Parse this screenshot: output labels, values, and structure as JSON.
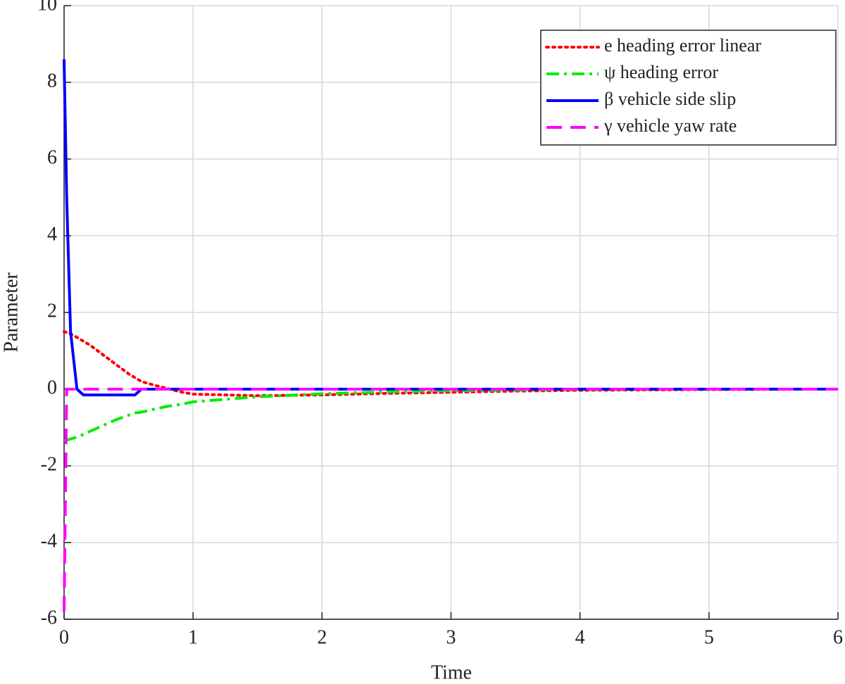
{
  "chart_data": {
    "type": "line",
    "xlabel": "Time",
    "ylabel": "Parameter",
    "x": [
      0,
      0.02,
      0.05,
      0.1,
      0.15,
      0.2,
      0.3,
      0.4,
      0.5,
      0.55,
      0.6,
      0.7,
      0.8,
      0.9,
      1,
      1.5,
      2,
      2.5,
      3,
      3.5,
      4,
      5,
      6
    ],
    "series": [
      {
        "name": "e heading error linear",
        "color": "#ff0000",
        "style": "dotted",
        "values": [
          1.5,
          1.48,
          1.44,
          1.35,
          1.25,
          1.15,
          0.9,
          0.65,
          0.4,
          0.3,
          0.2,
          0.1,
          0.02,
          -0.07,
          -0.13,
          -0.17,
          -0.15,
          -0.11,
          -0.08,
          -0.05,
          -0.03,
          -0.01,
          0
        ]
      },
      {
        "name": "ψ heading error",
        "color": "#00ee00",
        "style": "dashdot",
        "values": [
          -1.35,
          -1.33,
          -1.3,
          -1.25,
          -1.18,
          -1.1,
          -0.95,
          -0.8,
          -0.68,
          -0.62,
          -0.6,
          -0.52,
          -0.45,
          -0.4,
          -0.33,
          -0.2,
          -0.12,
          -0.07,
          -0.04,
          -0.02,
          -0.01,
          0,
          0
        ]
      },
      {
        "name": "β vehicle side slip",
        "color": "#0000ff",
        "style": "solid",
        "values": [
          8.6,
          5,
          1.5,
          0,
          -0.15,
          -0.15,
          -0.15,
          -0.15,
          -0.15,
          -0.15,
          0,
          0,
          0,
          0,
          0,
          0,
          0,
          0,
          0,
          0,
          0,
          0,
          0
        ]
      },
      {
        "name": "γ vehicle yaw rate",
        "color": "#ff00ff",
        "style": "dashed",
        "values": [
          -5.8,
          0,
          0,
          0,
          0,
          0,
          0,
          0,
          0,
          0,
          0,
          0,
          0,
          0,
          0,
          0,
          0,
          0,
          0,
          0,
          0,
          0,
          0
        ]
      }
    ],
    "xlim": [
      0,
      6
    ],
    "xticks": [
      0,
      1,
      2,
      3,
      4,
      5,
      6
    ],
    "ylim": [
      -6,
      10
    ],
    "yticks": [
      -6,
      -4,
      -2,
      0,
      2,
      4,
      6,
      8,
      10
    ],
    "grid": true,
    "legend": "top-right"
  }
}
